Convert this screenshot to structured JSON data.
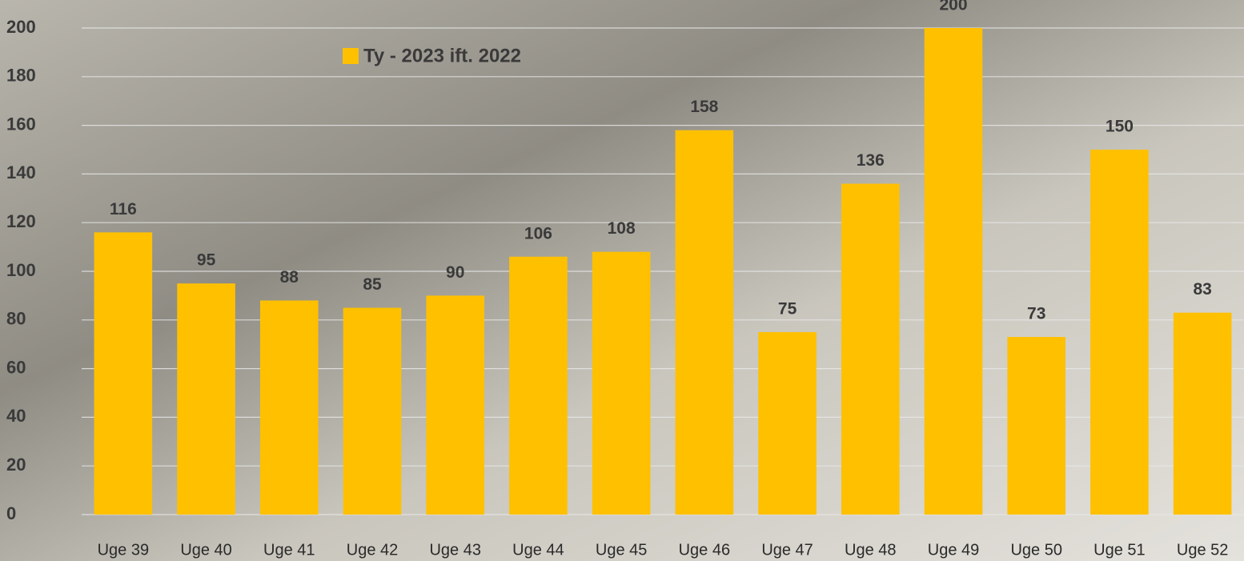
{
  "chart_data": {
    "type": "bar",
    "categories": [
      "Uge 39",
      "Uge 40",
      "Uge 41",
      "Uge 42",
      "Uge 43",
      "Uge 44",
      "Uge 45",
      "Uge 46",
      "Uge 47",
      "Uge 48",
      "Uge 49",
      "Uge 50",
      "Uge 51",
      "Uge 52"
    ],
    "series": [
      {
        "name": "Ty - 2023 ift. 2022",
        "color": "#ffc000",
        "values": [
          116,
          95,
          88,
          85,
          90,
          106,
          108,
          158,
          75,
          136,
          200,
          73,
          150,
          83
        ]
      }
    ],
    "ylim": [
      0,
      200
    ],
    "yticks": [
      0,
      20,
      40,
      60,
      80,
      100,
      120,
      140,
      160,
      180,
      200
    ],
    "grid": true,
    "legend": "top-left"
  }
}
